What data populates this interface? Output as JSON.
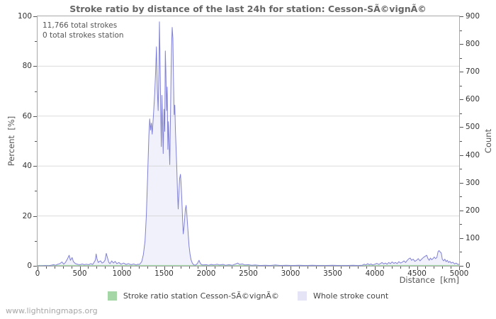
{
  "page": {
    "watermark": "www.lightningmaps.org"
  },
  "legend": {
    "items": [
      {
        "label": "Stroke ratio station Cesson-SÃ©vignÃ©",
        "color": "#a5d6a5"
      },
      {
        "label": "Whole stroke count",
        "color": "#e4e4f6"
      }
    ]
  },
  "chart_data": {
    "type": "area",
    "title": "Stroke ratio by distance of the last 24h for station: Cesson-SÃ©vignÃ©",
    "annotations": [
      "11,766 total strokes",
      "0 total strokes station"
    ],
    "xlabel": "Distance  [km]",
    "ylabel_left": "Percent  [%]",
    "ylabel_right": "Count",
    "xlim": [
      0,
      5000
    ],
    "ylim_left": [
      0,
      100
    ],
    "ylim_right": [
      0,
      900
    ],
    "x_ticks": [
      0,
      500,
      1000,
      1500,
      2000,
      2500,
      3000,
      3500,
      4000,
      4500,
      5000
    ],
    "x_minor_step": 100,
    "y_ticks_left": [
      0,
      20,
      40,
      60,
      80,
      100
    ],
    "y_minor_step_left": 10,
    "y_ticks_right": [
      0,
      100,
      200,
      300,
      400,
      500,
      600,
      700,
      800,
      900
    ],
    "y_minor_step_right": 50,
    "gridlines_percent": [
      20,
      40,
      60,
      80
    ],
    "grid": "horizontal-only",
    "legend_position": "bottom-center",
    "colors": {
      "grid": "#cfcfcf",
      "frame": "#a8a8a8",
      "count_line": "#8080d5",
      "count_fill": "#edeef9",
      "station_line": "#a5d6a5",
      "title_text": "#666666"
    },
    "series": [
      {
        "name": "Stroke ratio station Cesson-SÃ©vignÃ©",
        "axis": "left",
        "unit": "percent",
        "color": "#a5d6a5",
        "points": [
          [
            0,
            0
          ],
          [
            5000,
            0
          ]
        ]
      },
      {
        "name": "Whole stroke count",
        "axis": "right",
        "unit": "count",
        "line_color": "#8080d5",
        "fill_color": "#edeef9",
        "points": [
          [
            0,
            0
          ],
          [
            50,
            0
          ],
          [
            100,
            1
          ],
          [
            130,
            0
          ],
          [
            160,
            2
          ],
          [
            190,
            4
          ],
          [
            215,
            2
          ],
          [
            240,
            6
          ],
          [
            265,
            8
          ],
          [
            290,
            14
          ],
          [
            310,
            6
          ],
          [
            330,
            12
          ],
          [
            355,
            25
          ],
          [
            375,
            38
          ],
          [
            390,
            20
          ],
          [
            410,
            30
          ],
          [
            425,
            15
          ],
          [
            450,
            8
          ],
          [
            480,
            5
          ],
          [
            505,
            4
          ],
          [
            530,
            7
          ],
          [
            555,
            4
          ],
          [
            580,
            6
          ],
          [
            605,
            4
          ],
          [
            630,
            8
          ],
          [
            655,
            5
          ],
          [
            685,
            20
          ],
          [
            695,
            43
          ],
          [
            705,
            25
          ],
          [
            720,
            12
          ],
          [
            735,
            16
          ],
          [
            748,
            18
          ],
          [
            765,
            10
          ],
          [
            780,
            12
          ],
          [
            800,
            20
          ],
          [
            815,
            45
          ],
          [
            830,
            28
          ],
          [
            845,
            12
          ],
          [
            860,
            8
          ],
          [
            880,
            18
          ],
          [
            900,
            10
          ],
          [
            920,
            16
          ],
          [
            940,
            8
          ],
          [
            965,
            12
          ],
          [
            990,
            6
          ],
          [
            1020,
            10
          ],
          [
            1050,
            5
          ],
          [
            1080,
            8
          ],
          [
            1110,
            4
          ],
          [
            1140,
            7
          ],
          [
            1170,
            3
          ],
          [
            1190,
            6
          ],
          [
            1210,
            5
          ],
          [
            1235,
            15
          ],
          [
            1255,
            40
          ],
          [
            1275,
            90
          ],
          [
            1290,
            180
          ],
          [
            1305,
            320
          ],
          [
            1320,
            470
          ],
          [
            1330,
            530
          ],
          [
            1340,
            490
          ],
          [
            1350,
            515
          ],
          [
            1360,
            475
          ],
          [
            1375,
            545
          ],
          [
            1390,
            625
          ],
          [
            1400,
            700
          ],
          [
            1410,
            790
          ],
          [
            1420,
            640
          ],
          [
            1430,
            560
          ],
          [
            1440,
            720
          ],
          [
            1445,
            880
          ],
          [
            1452,
            760
          ],
          [
            1460,
            570
          ],
          [
            1468,
            430
          ],
          [
            1475,
            615
          ],
          [
            1482,
            525
          ],
          [
            1490,
            405
          ],
          [
            1500,
            565
          ],
          [
            1508,
            485
          ],
          [
            1515,
            775
          ],
          [
            1522,
            700
          ],
          [
            1530,
            560
          ],
          [
            1538,
            645
          ],
          [
            1545,
            420
          ],
          [
            1552,
            520
          ],
          [
            1560,
            445
          ],
          [
            1568,
            365
          ],
          [
            1575,
            505
          ],
          [
            1583,
            685
          ],
          [
            1590,
            795
          ],
          [
            1597,
            860
          ],
          [
            1605,
            820
          ],
          [
            1612,
            680
          ],
          [
            1620,
            545
          ],
          [
            1628,
            580
          ],
          [
            1635,
            485
          ],
          [
            1643,
            425
          ],
          [
            1652,
            345
          ],
          [
            1660,
            265
          ],
          [
            1668,
            205
          ],
          [
            1675,
            255
          ],
          [
            1685,
            315
          ],
          [
            1695,
            330
          ],
          [
            1703,
            290
          ],
          [
            1712,
            235
          ],
          [
            1720,
            165
          ],
          [
            1728,
            115
          ],
          [
            1737,
            140
          ],
          [
            1745,
            172
          ],
          [
            1753,
            205
          ],
          [
            1762,
            218
          ],
          [
            1770,
            190
          ],
          [
            1778,
            152
          ],
          [
            1787,
            112
          ],
          [
            1797,
            72
          ],
          [
            1808,
            42
          ],
          [
            1820,
            22
          ],
          [
            1835,
            10
          ],
          [
            1850,
            4
          ],
          [
            1870,
            2
          ],
          [
            1895,
            8
          ],
          [
            1915,
            20
          ],
          [
            1925,
            12
          ],
          [
            1940,
            5
          ],
          [
            1960,
            3
          ],
          [
            2000,
            4
          ],
          [
            2030,
            2
          ],
          [
            2060,
            5
          ],
          [
            2090,
            3
          ],
          [
            2130,
            6
          ],
          [
            2160,
            3
          ],
          [
            2200,
            5
          ],
          [
            2230,
            2
          ],
          [
            2270,
            4
          ],
          [
            2310,
            2
          ],
          [
            2350,
            7
          ],
          [
            2375,
            10
          ],
          [
            2395,
            5
          ],
          [
            2430,
            7
          ],
          [
            2460,
            3
          ],
          [
            2500,
            4
          ],
          [
            2540,
            2
          ],
          [
            2580,
            3
          ],
          [
            2640,
            1
          ],
          [
            2700,
            2
          ],
          [
            2760,
            1
          ],
          [
            2820,
            3
          ],
          [
            2880,
            1
          ],
          [
            2950,
            2
          ],
          [
            3020,
            1
          ],
          [
            3100,
            2
          ],
          [
            3180,
            1
          ],
          [
            3260,
            2
          ],
          [
            3340,
            1
          ],
          [
            3420,
            1
          ],
          [
            3500,
            2
          ],
          [
            3580,
            1
          ],
          [
            3660,
            1
          ],
          [
            3740,
            2
          ],
          [
            3800,
            1
          ],
          [
            3850,
            2
          ],
          [
            3875,
            6
          ],
          [
            3895,
            3
          ],
          [
            3915,
            8
          ],
          [
            3935,
            4
          ],
          [
            3955,
            7
          ],
          [
            3975,
            3
          ],
          [
            4000,
            6
          ],
          [
            4025,
            9
          ],
          [
            4045,
            5
          ],
          [
            4065,
            8
          ],
          [
            4085,
            12
          ],
          [
            4105,
            7
          ],
          [
            4125,
            10
          ],
          [
            4145,
            6
          ],
          [
            4165,
            12
          ],
          [
            4185,
            8
          ],
          [
            4205,
            14
          ],
          [
            4225,
            9
          ],
          [
            4245,
            12
          ],
          [
            4265,
            8
          ],
          [
            4285,
            15
          ],
          [
            4305,
            10
          ],
          [
            4325,
            13
          ],
          [
            4345,
            18
          ],
          [
            4365,
            12
          ],
          [
            4385,
            20
          ],
          [
            4405,
            26
          ],
          [
            4420,
            28
          ],
          [
            4435,
            20
          ],
          [
            4455,
            24
          ],
          [
            4475,
            16
          ],
          [
            4495,
            20
          ],
          [
            4515,
            26
          ],
          [
            4535,
            18
          ],
          [
            4555,
            24
          ],
          [
            4575,
            30
          ],
          [
            4595,
            34
          ],
          [
            4615,
            38
          ],
          [
            4630,
            26
          ],
          [
            4645,
            20
          ],
          [
            4660,
            28
          ],
          [
            4675,
            22
          ],
          [
            4690,
            26
          ],
          [
            4705,
            32
          ],
          [
            4720,
            26
          ],
          [
            4735,
            30
          ],
          [
            4750,
            52
          ],
          [
            4762,
            55
          ],
          [
            4775,
            50
          ],
          [
            4788,
            46
          ],
          [
            4800,
            24
          ],
          [
            4815,
            18
          ],
          [
            4830,
            24
          ],
          [
            4845,
            15
          ],
          [
            4860,
            20
          ],
          [
            4875,
            12
          ],
          [
            4890,
            16
          ],
          [
            4905,
            10
          ],
          [
            4925,
            13
          ],
          [
            4945,
            7
          ],
          [
            4965,
            10
          ],
          [
            4985,
            5
          ],
          [
            5000,
            6
          ]
        ]
      }
    ]
  }
}
